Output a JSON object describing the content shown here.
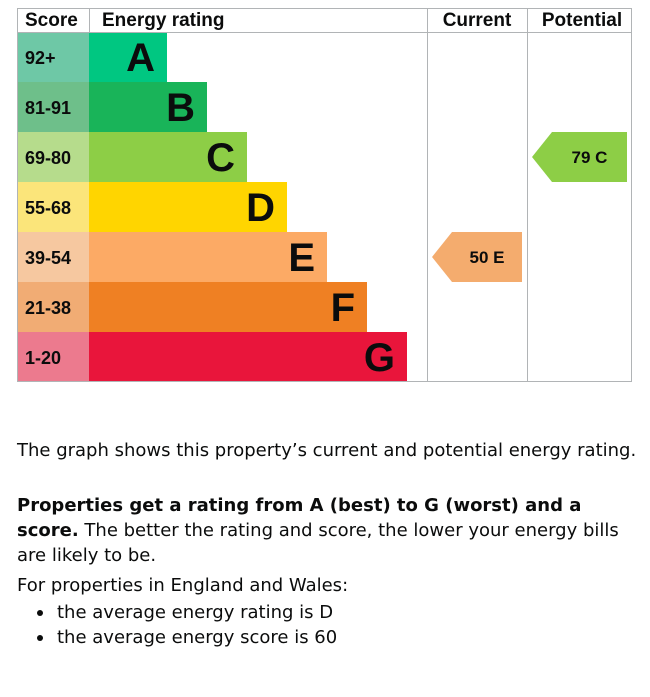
{
  "chart_data": {
    "type": "bar",
    "headers": {
      "score": "Score",
      "rating": "Energy rating",
      "current": "Current",
      "potential": "Potential"
    },
    "bands": [
      {
        "range": "92+",
        "letter": "A",
        "color": "#00c781",
        "score_color": "#6ec8a6"
      },
      {
        "range": "81-91",
        "letter": "B",
        "color": "#19b459",
        "score_color": "#6ebf8a"
      },
      {
        "range": "69-80",
        "letter": "C",
        "color": "#8dce46",
        "score_color": "#b6dc8c"
      },
      {
        "range": "55-68",
        "letter": "D",
        "color": "#ffd500",
        "score_color": "#fbe57a"
      },
      {
        "range": "39-54",
        "letter": "E",
        "color": "#fcaa65",
        "score_color": "#f6c8a0"
      },
      {
        "range": "21-38",
        "letter": "F",
        "color": "#ef8023",
        "score_color": "#f1ac74"
      },
      {
        "range": "1-20",
        "letter": "G",
        "color": "#e9153b",
        "score_color": "#ec7a8e"
      }
    ],
    "current": {
      "score": 50,
      "letter": "E",
      "label": "50 E",
      "color": "#f4ac6e"
    },
    "potential": {
      "score": 79,
      "letter": "C",
      "label": "79 C",
      "color": "#8dce46"
    }
  },
  "text": {
    "graph_description": "The graph shows this property’s current and potential energy rating.",
    "ratings_bold": "Properties get a rating from A (best) to G (worst) and a score.",
    "ratings_rest": " The better the rating and score, the lower your energy bills are likely to be.",
    "region_intro": "For properties in England and Wales:",
    "averages": [
      "the average energy rating is D",
      "the average energy score is 60"
    ]
  }
}
